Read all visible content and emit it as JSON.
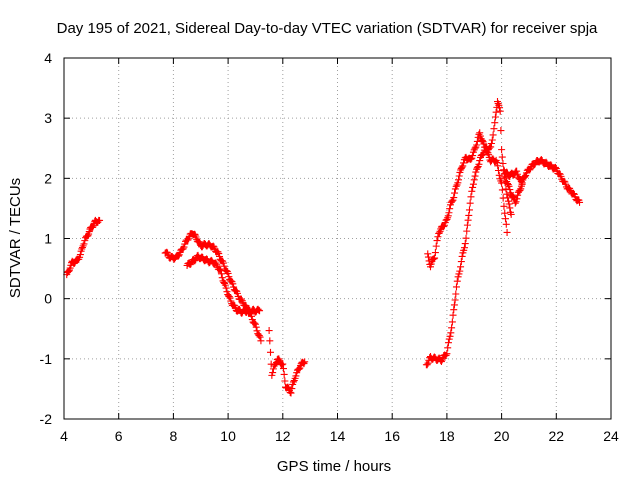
{
  "chart_data": {
    "type": "scatter",
    "title": "Day 195 of 2021, Sidereal Day-to-day VTEC variation (SDTVAR) for receiver spja",
    "xlabel": "GPS time / hours",
    "ylabel": "SDTVAR / TECUs",
    "xlim": [
      4,
      24
    ],
    "ylim": [
      -2,
      4
    ],
    "xticks": [
      4,
      6,
      8,
      10,
      12,
      14,
      16,
      18,
      20,
      22,
      24
    ],
    "yticks": [
      -2,
      -1,
      0,
      1,
      2,
      3,
      4
    ],
    "xtick_labels": [
      "4",
      "6",
      "8",
      "10",
      "12",
      "14",
      "16",
      "18",
      "20",
      "22",
      "24"
    ],
    "ytick_labels": [
      "-2",
      "-1",
      "0",
      "1",
      "2",
      "3",
      "4"
    ],
    "grid": true,
    "marker": "+",
    "color": "#ff0000",
    "series": [
      {
        "name": "SDTVAR",
        "segments": [
          [
            [
              4.1,
              0.38
            ],
            [
              4.2,
              0.5
            ],
            [
              4.3,
              0.6
            ],
            [
              4.45,
              0.62
            ],
            [
              4.6,
              0.72
            ],
            [
              4.7,
              0.9
            ],
            [
              4.85,
              1.05
            ],
            [
              5.0,
              1.18
            ],
            [
              5.15,
              1.28
            ],
            [
              5.3,
              1.3
            ]
          ],
          [
            [
              7.7,
              0.78
            ],
            [
              7.9,
              0.68
            ],
            [
              8.1,
              0.68
            ],
            [
              8.3,
              0.8
            ],
            [
              8.5,
              0.98
            ],
            [
              8.7,
              1.1
            ],
            [
              8.85,
              1.0
            ],
            [
              9.0,
              0.88
            ],
            [
              9.2,
              0.9
            ],
            [
              9.4,
              0.88
            ],
            [
              9.6,
              0.78
            ],
            [
              9.8,
              0.6
            ],
            [
              10.0,
              0.4
            ],
            [
              10.2,
              0.2
            ],
            [
              10.4,
              0.02
            ],
            [
              10.6,
              -0.1
            ],
            [
              10.8,
              -0.25
            ],
            [
              11.0,
              -0.45
            ],
            [
              11.2,
              -0.7
            ]
          ],
          [
            [
              8.5,
              0.55
            ],
            [
              8.7,
              0.62
            ],
            [
              8.9,
              0.7
            ],
            [
              9.1,
              0.66
            ],
            [
              9.3,
              0.62
            ],
            [
              9.5,
              0.6
            ],
            [
              9.7,
              0.48
            ],
            [
              9.9,
              0.2
            ],
            [
              10.1,
              -0.05
            ],
            [
              10.3,
              -0.18
            ],
            [
              10.5,
              -0.22
            ],
            [
              10.7,
              -0.2
            ],
            [
              10.9,
              -0.2
            ],
            [
              11.15,
              -0.2
            ]
          ],
          [
            [
              11.5,
              -0.55
            ],
            [
              11.6,
              -1.25
            ],
            [
              11.8,
              -1.0
            ],
            [
              12.0,
              -1.1
            ],
            [
              12.1,
              -1.45
            ],
            [
              12.3,
              -1.55
            ],
            [
              12.45,
              -1.3
            ],
            [
              12.65,
              -1.1
            ],
            [
              12.8,
              -1.05
            ]
          ],
          [
            [
              17.25,
              -1.1
            ],
            [
              17.4,
              -0.98
            ],
            [
              17.6,
              -1.0
            ],
            [
              17.8,
              -1.02
            ],
            [
              18.0,
              -0.9
            ],
            [
              18.2,
              -0.4
            ],
            [
              18.35,
              0.2
            ],
            [
              18.5,
              0.55
            ],
            [
              18.7,
              1.0
            ],
            [
              18.85,
              1.6
            ],
            [
              19.0,
              2.0
            ],
            [
              19.2,
              2.3
            ],
            [
              19.4,
              2.5
            ],
            [
              19.6,
              2.5
            ],
            [
              19.75,
              2.9
            ],
            [
              19.85,
              3.3
            ],
            [
              19.95,
              3.1
            ],
            [
              20.0,
              2.5
            ],
            [
              20.1,
              2.0
            ],
            [
              20.25,
              1.6
            ],
            [
              20.35,
              1.4
            ]
          ],
          [
            [
              17.3,
              0.72
            ],
            [
              17.4,
              0.55
            ],
            [
              17.55,
              0.7
            ],
            [
              17.7,
              1.1
            ],
            [
              17.85,
              1.2
            ],
            [
              18.0,
              1.3
            ],
            [
              18.1,
              1.5
            ],
            [
              18.25,
              1.7
            ],
            [
              18.4,
              1.95
            ],
            [
              18.55,
              2.2
            ],
            [
              18.7,
              2.35
            ],
            [
              18.85,
              2.3
            ],
            [
              19.0,
              2.45
            ],
            [
              19.2,
              2.75
            ],
            [
              19.35,
              2.55
            ],
            [
              19.5,
              2.4
            ],
            [
              19.6,
              2.3
            ],
            [
              19.8,
              2.3
            ],
            [
              20.0,
              1.9
            ],
            [
              20.2,
              1.1
            ]
          ],
          [
            [
              20.1,
              2.1
            ],
            [
              20.3,
              1.8
            ],
            [
              20.5,
              1.6
            ],
            [
              20.7,
              1.85
            ],
            [
              20.85,
              2.05
            ],
            [
              21.0,
              2.15
            ],
            [
              21.2,
              2.25
            ],
            [
              21.4,
              2.3
            ],
            [
              21.6,
              2.25
            ],
            [
              21.8,
              2.2
            ],
            [
              22.0,
              2.15
            ],
            [
              22.2,
              2.0
            ],
            [
              22.4,
              1.85
            ],
            [
              22.6,
              1.75
            ],
            [
              22.75,
              1.65
            ],
            [
              22.85,
              1.6
            ]
          ],
          [
            [
              20.1,
              2.1
            ],
            [
              20.3,
              2.05
            ],
            [
              20.55,
              2.1
            ],
            [
              20.75,
              1.9
            ]
          ]
        ]
      }
    ]
  }
}
